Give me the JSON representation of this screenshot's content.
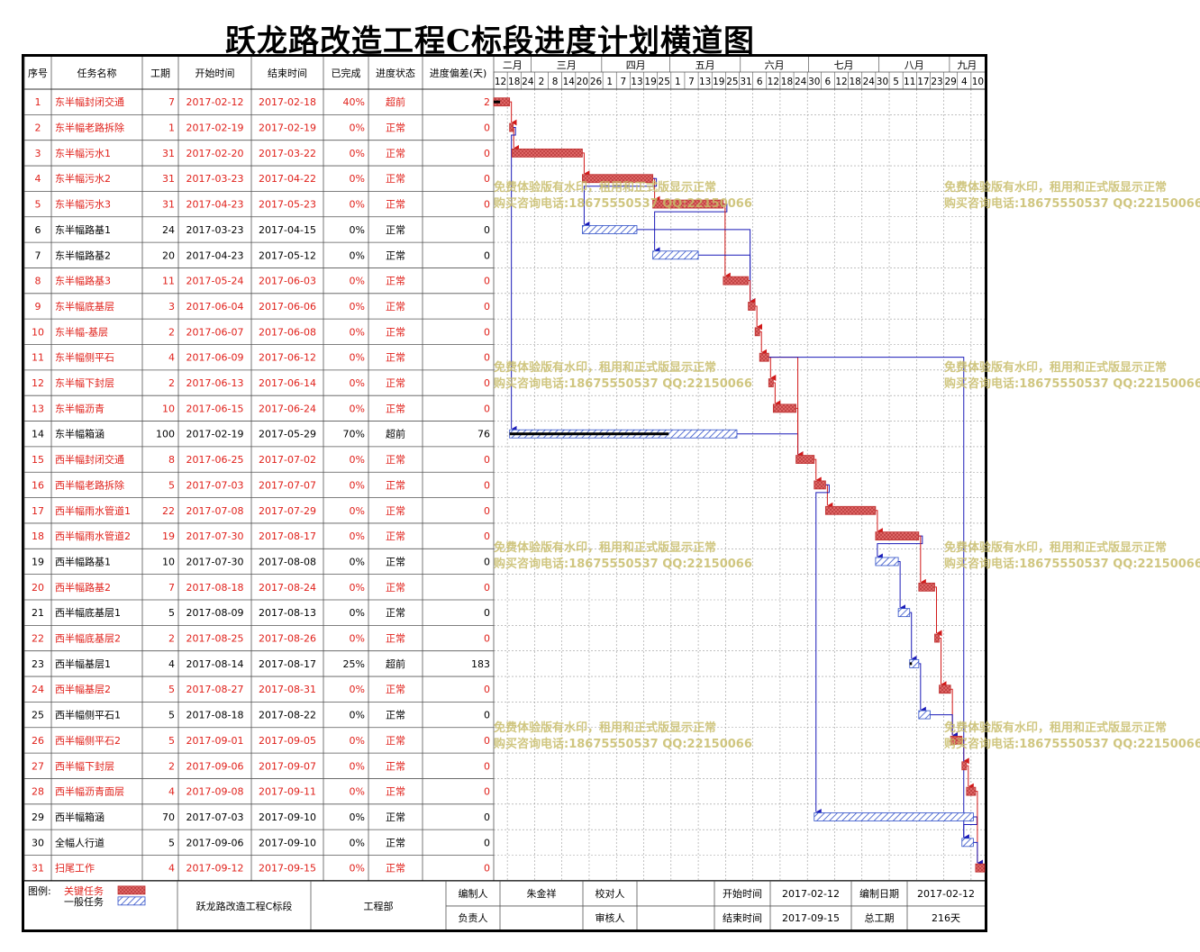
{
  "title": "跃龙路改造工程C标段进度计划横道图",
  "headers": [
    "序号",
    "任务名称",
    "工期",
    "开始时间",
    "结束时间",
    "已完成",
    "进度状态",
    "进度偏差(天)"
  ],
  "months": [
    {
      "label": "二月",
      "start": "2017-02-12",
      "end": "2017-02-28"
    },
    {
      "label": "三月",
      "start": "2017-03-01",
      "end": "2017-03-31"
    },
    {
      "label": "四月",
      "start": "2017-04-01",
      "end": "2017-04-30"
    },
    {
      "label": "五月",
      "start": "2017-05-01",
      "end": "2017-05-31"
    },
    {
      "label": "六月",
      "start": "2017-06-01",
      "end": "2017-06-30"
    },
    {
      "label": "七月",
      "start": "2017-07-01",
      "end": "2017-07-31"
    },
    {
      "label": "八月",
      "start": "2017-08-01",
      "end": "2017-08-31"
    },
    {
      "label": "九月",
      "start": "2017-09-01",
      "end": "2017-09-15"
    }
  ],
  "day_ticks": [
    "12",
    "18",
    "24",
    "2",
    "8",
    "14",
    "20",
    "26",
    "1",
    "7",
    "13",
    "19",
    "25",
    "1",
    "7",
    "13",
    "19",
    "25",
    "31",
    "6",
    "12",
    "18",
    "24",
    "30",
    "6",
    "12",
    "18",
    "24",
    "30",
    "5",
    "11",
    "17",
    "23",
    "29",
    "4",
    "10"
  ],
  "tick_dates": [
    "2017-02-12",
    "2017-02-18",
    "2017-02-24",
    "2017-03-02",
    "2017-03-08",
    "2017-03-14",
    "2017-03-20",
    "2017-03-26",
    "2017-04-01",
    "2017-04-07",
    "2017-04-13",
    "2017-04-19",
    "2017-04-25",
    "2017-05-01",
    "2017-05-07",
    "2017-05-13",
    "2017-05-19",
    "2017-05-25",
    "2017-05-31",
    "2017-06-06",
    "2017-06-12",
    "2017-06-18",
    "2017-06-24",
    "2017-06-30",
    "2017-07-06",
    "2017-07-12",
    "2017-07-18",
    "2017-07-24",
    "2017-07-30",
    "2017-08-05",
    "2017-08-11",
    "2017-08-17",
    "2017-08-23",
    "2017-08-29",
    "2017-09-04",
    "2017-09-10"
  ],
  "chart_data": {
    "type": "gantt",
    "title": "跃龙路改造工程C标段进度计划横道图",
    "x_range": [
      "2017-02-12",
      "2017-09-15"
    ],
    "tasks": [
      {
        "id": "1",
        "name": "东半幅封闭交通",
        "duration": "7",
        "start": "2017-02-12",
        "end": "2017-02-18",
        "done": "40%",
        "status": "超前",
        "deviation": "2",
        "critical": true,
        "progress": 0.4
      },
      {
        "id": "2",
        "name": "东半幅老路拆除",
        "duration": "1",
        "start": "2017-02-19",
        "end": "2017-02-19",
        "done": "0%",
        "status": "正常",
        "deviation": "0",
        "critical": true,
        "progress": 0
      },
      {
        "id": "3",
        "name": "东半幅污水1",
        "duration": "31",
        "start": "2017-02-20",
        "end": "2017-03-22",
        "done": "0%",
        "status": "正常",
        "deviation": "0",
        "critical": true,
        "progress": 0
      },
      {
        "id": "4",
        "name": "东半幅污水2",
        "duration": "31",
        "start": "2017-03-23",
        "end": "2017-04-22",
        "done": "0%",
        "status": "正常",
        "deviation": "0",
        "critical": true,
        "progress": 0
      },
      {
        "id": "5",
        "name": "东半幅污水3",
        "duration": "31",
        "start": "2017-04-23",
        "end": "2017-05-23",
        "done": "0%",
        "status": "正常",
        "deviation": "0",
        "critical": true,
        "progress": 0
      },
      {
        "id": "6",
        "name": "东半幅路基1",
        "duration": "24",
        "start": "2017-03-23",
        "end": "2017-04-15",
        "done": "0%",
        "status": "正常",
        "deviation": "0",
        "critical": false,
        "progress": 0
      },
      {
        "id": "7",
        "name": "东半幅路基2",
        "duration": "20",
        "start": "2017-04-23",
        "end": "2017-05-12",
        "done": "0%",
        "status": "正常",
        "deviation": "0",
        "critical": false,
        "progress": 0
      },
      {
        "id": "8",
        "name": "东半幅路基3",
        "duration": "11",
        "start": "2017-05-24",
        "end": "2017-06-03",
        "done": "0%",
        "status": "正常",
        "deviation": "0",
        "critical": true,
        "progress": 0
      },
      {
        "id": "9",
        "name": "东半幅底基层",
        "duration": "3",
        "start": "2017-06-04",
        "end": "2017-06-06",
        "done": "0%",
        "status": "正常",
        "deviation": "0",
        "critical": true,
        "progress": 0
      },
      {
        "id": "10",
        "name": "东半幅-基层",
        "duration": "2",
        "start": "2017-06-07",
        "end": "2017-06-08",
        "done": "0%",
        "status": "正常",
        "deviation": "0",
        "critical": true,
        "progress": 0
      },
      {
        "id": "11",
        "name": "东半幅侧平石",
        "duration": "4",
        "start": "2017-06-09",
        "end": "2017-06-12",
        "done": "0%",
        "status": "正常",
        "deviation": "0",
        "critical": true,
        "progress": 0
      },
      {
        "id": "12",
        "name": "东半幅下封层",
        "duration": "2",
        "start": "2017-06-13",
        "end": "2017-06-14",
        "done": "0%",
        "status": "正常",
        "deviation": "0",
        "critical": true,
        "progress": 0
      },
      {
        "id": "13",
        "name": "东半幅沥青",
        "duration": "10",
        "start": "2017-06-15",
        "end": "2017-06-24",
        "done": "0%",
        "status": "正常",
        "deviation": "0",
        "critical": true,
        "progress": 0
      },
      {
        "id": "14",
        "name": "东半幅箱涵",
        "duration": "100",
        "start": "2017-02-19",
        "end": "2017-05-29",
        "done": "70%",
        "status": "超前",
        "deviation": "76",
        "critical": false,
        "progress": 0.7
      },
      {
        "id": "15",
        "name": "西半幅封闭交通",
        "duration": "8",
        "start": "2017-06-25",
        "end": "2017-07-02",
        "done": "0%",
        "status": "正常",
        "deviation": "0",
        "critical": true,
        "progress": 0
      },
      {
        "id": "16",
        "name": "西半幅老路拆除",
        "duration": "5",
        "start": "2017-07-03",
        "end": "2017-07-07",
        "done": "0%",
        "status": "正常",
        "deviation": "0",
        "critical": true,
        "progress": 0
      },
      {
        "id": "17",
        "name": "西半幅雨水管道1",
        "duration": "22",
        "start": "2017-07-08",
        "end": "2017-07-29",
        "done": "0%",
        "status": "正常",
        "deviation": "0",
        "critical": true,
        "progress": 0
      },
      {
        "id": "18",
        "name": "西半幅雨水管道2",
        "duration": "19",
        "start": "2017-07-30",
        "end": "2017-08-17",
        "done": "0%",
        "status": "正常",
        "deviation": "0",
        "critical": true,
        "progress": 0
      },
      {
        "id": "19",
        "name": "西半幅路基1",
        "duration": "10",
        "start": "2017-07-30",
        "end": "2017-08-08",
        "done": "0%",
        "status": "正常",
        "deviation": "0",
        "critical": false,
        "progress": 0
      },
      {
        "id": "20",
        "name": "西半幅路基2",
        "duration": "7",
        "start": "2017-08-18",
        "end": "2017-08-24",
        "done": "0%",
        "status": "正常",
        "deviation": "0",
        "critical": true,
        "progress": 0
      },
      {
        "id": "21",
        "name": "西半幅底基层1",
        "duration": "5",
        "start": "2017-08-09",
        "end": "2017-08-13",
        "done": "0%",
        "status": "正常",
        "deviation": "0",
        "critical": false,
        "progress": 0
      },
      {
        "id": "22",
        "name": "西半幅底基层2",
        "duration": "2",
        "start": "2017-08-25",
        "end": "2017-08-26",
        "done": "0%",
        "status": "正常",
        "deviation": "0",
        "critical": true,
        "progress": 0
      },
      {
        "id": "23",
        "name": "西半幅基层1",
        "duration": "4",
        "start": "2017-08-14",
        "end": "2017-08-17",
        "done": "25%",
        "status": "超前",
        "deviation": "183",
        "critical": false,
        "progress": 0.25
      },
      {
        "id": "24",
        "name": "西半幅基层2",
        "duration": "5",
        "start": "2017-08-27",
        "end": "2017-08-31",
        "done": "0%",
        "status": "正常",
        "deviation": "0",
        "critical": true,
        "progress": 0
      },
      {
        "id": "25",
        "name": "西半幅侧平石1",
        "duration": "5",
        "start": "2017-08-18",
        "end": "2017-08-22",
        "done": "0%",
        "status": "正常",
        "deviation": "0",
        "critical": false,
        "progress": 0
      },
      {
        "id": "26",
        "name": "西半幅侧平石2",
        "duration": "5",
        "start": "2017-09-01",
        "end": "2017-09-05",
        "done": "0%",
        "status": "正常",
        "deviation": "0",
        "critical": true,
        "progress": 0
      },
      {
        "id": "27",
        "name": "西半幅下封层",
        "duration": "2",
        "start": "2017-09-06",
        "end": "2017-09-07",
        "done": "0%",
        "status": "正常",
        "deviation": "0",
        "critical": true,
        "progress": 0
      },
      {
        "id": "28",
        "name": "西半幅沥青面层",
        "duration": "4",
        "start": "2017-09-08",
        "end": "2017-09-11",
        "done": "0%",
        "status": "正常",
        "deviation": "0",
        "critical": true,
        "progress": 0
      },
      {
        "id": "29",
        "name": "西半幅箱涵",
        "duration": "70",
        "start": "2017-07-03",
        "end": "2017-09-10",
        "done": "0%",
        "status": "正常",
        "deviation": "0",
        "critical": false,
        "progress": 0
      },
      {
        "id": "30",
        "name": "全幅人行道",
        "duration": "5",
        "start": "2017-09-06",
        "end": "2017-09-10",
        "done": "0%",
        "status": "正常",
        "deviation": "0",
        "critical": false,
        "progress": 0
      },
      {
        "id": "31",
        "name": "扫尾工作",
        "duration": "4",
        "start": "2017-09-12",
        "end": "2017-09-15",
        "done": "0%",
        "status": "正常",
        "deviation": "0",
        "critical": true,
        "progress": 0
      }
    ],
    "links": [
      [
        1,
        2,
        "r"
      ],
      [
        2,
        3,
        "r"
      ],
      [
        3,
        4,
        "r"
      ],
      [
        4,
        5,
        "r"
      ],
      [
        4,
        6,
        "b"
      ],
      [
        5,
        7,
        "b"
      ],
      [
        5,
        8,
        "r"
      ],
      [
        6,
        9,
        "b"
      ],
      [
        7,
        9,
        "b"
      ],
      [
        8,
        9,
        "r"
      ],
      [
        9,
        10,
        "r"
      ],
      [
        10,
        11,
        "r"
      ],
      [
        11,
        12,
        "r"
      ],
      [
        12,
        13,
        "r"
      ],
      [
        11,
        15,
        "r"
      ],
      [
        2,
        14,
        "b"
      ],
      [
        14,
        15,
        "b"
      ],
      [
        13,
        15,
        "r"
      ],
      [
        15,
        16,
        "r"
      ],
      [
        16,
        17,
        "r"
      ],
      [
        17,
        18,
        "r"
      ],
      [
        18,
        19,
        "b"
      ],
      [
        18,
        20,
        "r"
      ],
      [
        19,
        21,
        "b"
      ],
      [
        20,
        22,
        "r"
      ],
      [
        21,
        23,
        "b"
      ],
      [
        22,
        24,
        "r"
      ],
      [
        23,
        25,
        "b"
      ],
      [
        24,
        26,
        "r"
      ],
      [
        25,
        26,
        "b"
      ],
      [
        26,
        27,
        "r"
      ],
      [
        27,
        28,
        "r"
      ],
      [
        16,
        29,
        "b"
      ],
      [
        29,
        30,
        "b"
      ],
      [
        28,
        31,
        "r"
      ],
      [
        30,
        31,
        "b"
      ],
      [
        11,
        30,
        "b"
      ]
    ]
  },
  "legend": {
    "label": "图例:",
    "critical": "关键任务",
    "normal": "一般任务"
  },
  "footer": {
    "project": "跃龙路改造工程C标段",
    "dept": "工程部",
    "author_label": "编制人",
    "author": "朱金祥",
    "checker_label": "校对人",
    "checker": "",
    "owner_label": "负责人",
    "owner": "",
    "reviewer_label": "审核人",
    "reviewer": "",
    "start_label": "开始时间",
    "start": "2017-02-12",
    "date_label": "编制日期",
    "date": "2017-02-12",
    "end_label": "结束时间",
    "end": "2017-09-15",
    "total_label": "总工期",
    "total": "216天"
  },
  "watermark": [
    "免费体验版有水印，租用和正式版显示正常",
    "购买咨询电话:18675550537 QQ:22150066"
  ],
  "colors": {
    "critical_fill": "#e06060",
    "critical_text": "#e0201a",
    "normal_fill": "#3050c8",
    "link_red": "#d21818",
    "link_blue": "#1a1ab8",
    "grid": "#9a9a9a"
  }
}
